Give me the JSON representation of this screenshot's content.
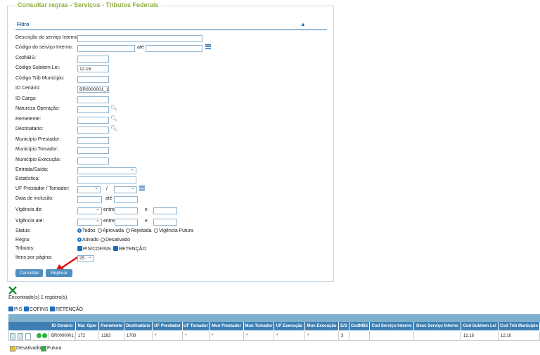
{
  "title": "Consultar regras - Serviços - Tributos Federais",
  "filter_label": "Filtro",
  "rows": [
    {
      "label": "Descrição do serviço Interno:"
    },
    {
      "label": "Código do serviço Interno:",
      "sep": "até"
    },
    {
      "label": "CodNBS:"
    },
    {
      "label": "Código Subitem Lei:",
      "value": "12.16"
    },
    {
      "label": "Código Trib Município:"
    },
    {
      "label": "ID Cenário:",
      "value": "BR0000001_1"
    },
    {
      "label": "ID Carga:"
    },
    {
      "label": "Natureza Operação:"
    },
    {
      "label": "Remetente:"
    },
    {
      "label": "Destinatario:"
    },
    {
      "label": "Município Prestador:"
    },
    {
      "label": "Município Tomador:"
    },
    {
      "label": "Município Execução:"
    },
    {
      "label": "Entrada/Saída:"
    },
    {
      "label": "Estatística:"
    },
    {
      "label": "UF Prestador / Tomador:",
      "sep": "/"
    },
    {
      "label": "Data de inclusão:",
      "sep": "até"
    },
    {
      "label": "Vigência de:",
      "sep": "entre",
      "sep2": "e"
    },
    {
      "label": "Vigência até:",
      "sep": "entre",
      "sep2": "e"
    },
    {
      "label": "Status:",
      "options": [
        "Todos",
        "Aprovada",
        "Rejeitada",
        "Vigência Futura"
      ]
    },
    {
      "label": "Regra:",
      "options": [
        "Ativado",
        "Desativado"
      ]
    },
    {
      "label": "Tributos:",
      "options": [
        "PIS/COFINS",
        "RETENÇÃO"
      ]
    },
    {
      "label": "Itens por página:",
      "value": "25"
    }
  ],
  "buttons": [
    "Consultar",
    "Replicar"
  ],
  "found_text": "Encontrado(s) 1 registro(s).",
  "column_toggles": [
    "PIS",
    "COFINS",
    "RETENÇÃO"
  ],
  "table": {
    "headers": [
      "ID Cenário",
      "Nat. Oper",
      "Remetente",
      "Destinatário",
      "UF Prestador",
      "UF Tomador",
      "Mun Prestador",
      "Mun Tomador",
      "UF Execução",
      "Mun Execução",
      "E/S",
      "CodNBS",
      "Cod Serviço Interno",
      "Desc Serviço Interno",
      "Cod Subitem Lei",
      "Cod Trib Município"
    ],
    "rows": [
      [
        "BR0000001_1",
        "172",
        "1283",
        "1708",
        "*",
        "*",
        "*",
        "*",
        "*",
        "*",
        "3",
        null,
        null,
        null,
        "12.16",
        "12.16"
      ]
    ]
  },
  "legend": [
    "Desativado",
    "Futura"
  ]
}
